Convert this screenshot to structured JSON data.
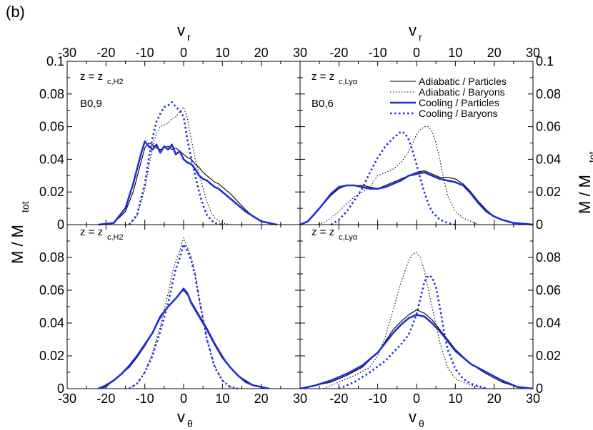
{
  "figure": {
    "panel_label": "(b)",
    "left_ylabel": "M / M",
    "left_ylabel_sub": "tot",
    "right_ylabel": "M / M",
    "right_ylabel_sub": "tot",
    "top_xlabel": "v",
    "top_xlabel_sub": "r",
    "bottom_xlabel": "v",
    "bottom_xlabel_sub": "θ"
  },
  "legend": {
    "entries": [
      {
        "label": "Adiabatic / Particles",
        "color": "#000000",
        "style": "solid-thin"
      },
      {
        "label": "Adiabatic / Baryons",
        "color": "#000000",
        "style": "dotted-thin"
      },
      {
        "label": "Cooling / Particles",
        "color": "#1f2fd6",
        "style": "solid-thick"
      },
      {
        "label": "Cooling / Baryons",
        "color": "#1f2fd6",
        "style": "dotted-thick"
      }
    ]
  },
  "annotations": {
    "tl_z": "z = z",
    "tl_z_sub": "c,H2",
    "tl_model": "B0,9",
    "tr_z": "z = z",
    "tr_z_sub": "c,Lyα",
    "tr_model": "B0,6",
    "bl_z": "z = z",
    "bl_z_sub": "c,H2",
    "br_z": "z = z",
    "br_z_sub": "c,Lyα"
  },
  "chart_data": [
    {
      "type": "line",
      "panel": "top-left",
      "xlabel": "v_r",
      "ylabel": "M / M_tot",
      "xlim": [
        -30,
        30
      ],
      "ylim": [
        0,
        0.1
      ],
      "x_ticks": [
        "-30",
        "-20",
        "-10",
        "0",
        "10",
        "20"
      ],
      "y_ticks": [
        "0",
        "0.02",
        "0.04",
        "0.06",
        "0.08",
        "0.1"
      ],
      "series": [
        {
          "name": "Adiabatic / Particles",
          "x": [
            -22,
            -18,
            -15,
            -13,
            -11,
            -10,
            -9,
            -8,
            -7,
            -6,
            -5,
            -4,
            -3,
            -2,
            -1,
            0,
            1,
            2,
            3,
            4,
            5,
            6,
            7,
            8,
            9,
            10,
            12,
            14,
            16,
            18,
            20,
            22,
            24
          ],
          "y": [
            0,
            0.001,
            0.008,
            0.02,
            0.038,
            0.047,
            0.05,
            0.049,
            0.047,
            0.046,
            0.047,
            0.048,
            0.046,
            0.047,
            0.045,
            0.043,
            0.041,
            0.04,
            0.037,
            0.035,
            0.032,
            0.03,
            0.028,
            0.026,
            0.025,
            0.023,
            0.019,
            0.014,
            0.009,
            0.005,
            0.002,
            0.001,
            0
          ]
        },
        {
          "name": "Adiabatic / Baryons",
          "x": [
            -14,
            -12,
            -10,
            -9,
            -8,
            -7,
            -6,
            -5,
            -4,
            -3,
            -2,
            -1,
            0,
            1,
            2,
            3,
            4,
            5,
            6,
            7,
            8,
            10,
            12
          ],
          "y": [
            0,
            0.005,
            0.022,
            0.035,
            0.047,
            0.056,
            0.06,
            0.061,
            0.062,
            0.065,
            0.066,
            0.069,
            0.072,
            0.065,
            0.052,
            0.04,
            0.031,
            0.022,
            0.014,
            0.008,
            0.004,
            0.001,
            0
          ]
        },
        {
          "name": "Cooling / Particles",
          "x": [
            -22,
            -18,
            -15,
            -13,
            -11,
            -10,
            -9,
            -8,
            -7,
            -6,
            -5,
            -4,
            -3,
            -2,
            -1,
            0,
            1,
            2,
            3,
            4,
            5,
            6,
            7,
            8,
            9,
            10,
            12,
            14,
            16,
            18,
            20,
            22,
            24
          ],
          "y": [
            0,
            0.001,
            0.01,
            0.025,
            0.043,
            0.051,
            0.048,
            0.046,
            0.049,
            0.044,
            0.048,
            0.046,
            0.049,
            0.043,
            0.045,
            0.04,
            0.038,
            0.037,
            0.034,
            0.03,
            0.028,
            0.027,
            0.025,
            0.023,
            0.022,
            0.02,
            0.016,
            0.012,
            0.008,
            0.005,
            0.002,
            0.001,
            0
          ]
        },
        {
          "name": "Cooling / Baryons",
          "x": [
            -14,
            -12,
            -10,
            -9,
            -8,
            -7,
            -6,
            -5,
            -4,
            -3,
            -2,
            -1,
            0,
            1,
            2,
            3,
            4,
            5,
            6,
            7,
            8,
            10
          ],
          "y": [
            0,
            0.006,
            0.025,
            0.04,
            0.053,
            0.063,
            0.068,
            0.072,
            0.073,
            0.075,
            0.072,
            0.07,
            0.066,
            0.052,
            0.04,
            0.03,
            0.02,
            0.012,
            0.006,
            0.003,
            0.001,
            0
          ]
        }
      ]
    },
    {
      "type": "line",
      "panel": "top-right",
      "xlabel": "v_r",
      "ylabel": "M / M_tot",
      "xlim": [
        -30,
        30
      ],
      "ylim": [
        0,
        0.1
      ],
      "x_ticks": [
        "30",
        "-20",
        "-10",
        "0",
        "10",
        "20",
        "30"
      ],
      "y_ticks": [
        "0",
        "0.02",
        "0.04",
        "0.06",
        "0.08",
        "0.1"
      ],
      "series": [
        {
          "name": "Adiabatic / Particles",
          "x": [
            -30,
            -28,
            -25,
            -22,
            -20,
            -18,
            -16,
            -14,
            -12,
            -10,
            -8,
            -6,
            -4,
            -2,
            0,
            2,
            4,
            6,
            8,
            10,
            12,
            14,
            16,
            18,
            20,
            22,
            25,
            28,
            30
          ],
          "y": [
            0,
            0.002,
            0.01,
            0.018,
            0.022,
            0.024,
            0.024,
            0.024,
            0.023,
            0.022,
            0.024,
            0.026,
            0.028,
            0.03,
            0.032,
            0.033,
            0.031,
            0.029,
            0.029,
            0.028,
            0.025,
            0.02,
            0.014,
            0.009,
            0.005,
            0.003,
            0.001,
            0.0005,
            0
          ]
        },
        {
          "name": "Adiabatic / Baryons",
          "x": [
            -26,
            -24,
            -22,
            -20,
            -18,
            -16,
            -14,
            -12,
            -10,
            -8,
            -6,
            -4,
            -2,
            0,
            1,
            2,
            3,
            4,
            5,
            6,
            7,
            8,
            10,
            12,
            14,
            16
          ],
          "y": [
            0,
            0.001,
            0.004,
            0.008,
            0.013,
            0.017,
            0.02,
            0.023,
            0.03,
            0.032,
            0.034,
            0.038,
            0.045,
            0.055,
            0.058,
            0.06,
            0.06,
            0.057,
            0.05,
            0.04,
            0.028,
            0.018,
            0.008,
            0.004,
            0.002,
            0
          ]
        },
        {
          "name": "Cooling / Particles",
          "x": [
            -30,
            -28,
            -25,
            -22,
            -20,
            -18,
            -16,
            -14,
            -12,
            -10,
            -8,
            -6,
            -4,
            -2,
            0,
            2,
            4,
            6,
            8,
            10,
            12,
            14,
            16,
            18,
            20,
            22,
            25,
            28,
            30
          ],
          "y": [
            0,
            0.002,
            0.01,
            0.019,
            0.023,
            0.024,
            0.024,
            0.023,
            0.022,
            0.022,
            0.023,
            0.025,
            0.027,
            0.03,
            0.031,
            0.032,
            0.03,
            0.028,
            0.027,
            0.026,
            0.024,
            0.019,
            0.013,
            0.008,
            0.005,
            0.003,
            0.001,
            0.0005,
            0
          ]
        },
        {
          "name": "Cooling / Baryons",
          "x": [
            -22,
            -20,
            -18,
            -16,
            -14,
            -12,
            -10,
            -8,
            -6,
            -5,
            -4,
            -3,
            -2,
            -1,
            0,
            1,
            2,
            3,
            4,
            6,
            8,
            10
          ],
          "y": [
            0,
            0.003,
            0.008,
            0.015,
            0.022,
            0.032,
            0.041,
            0.048,
            0.053,
            0.055,
            0.057,
            0.056,
            0.052,
            0.045,
            0.037,
            0.028,
            0.02,
            0.013,
            0.008,
            0.003,
            0.001,
            0
          ]
        }
      ]
    },
    {
      "type": "line",
      "panel": "bottom-left",
      "xlabel": "v_theta",
      "ylabel": "M / M_tot",
      "xlim": [
        -30,
        30
      ],
      "ylim": [
        0,
        0.1
      ],
      "x_ticks": [
        "-30",
        "-20",
        "-10",
        "0",
        "10",
        "20"
      ],
      "y_ticks": [
        "0",
        "0.02",
        "0.04",
        "0.06",
        "0.08"
      ],
      "series": [
        {
          "name": "Adiabatic / Particles",
          "x": [
            -22,
            -20,
            -18,
            -16,
            -14,
            -12,
            -10,
            -8,
            -6,
            -4,
            -2,
            -1,
            0,
            1,
            2,
            4,
            6,
            8,
            10,
            12,
            14,
            16,
            18,
            20,
            22
          ],
          "y": [
            0,
            0.001,
            0.005,
            0.009,
            0.013,
            0.019,
            0.026,
            0.034,
            0.043,
            0.05,
            0.055,
            0.058,
            0.06,
            0.057,
            0.053,
            0.045,
            0.037,
            0.028,
            0.02,
            0.013,
            0.008,
            0.005,
            0.002,
            0.001,
            0
          ]
        },
        {
          "name": "Adiabatic / Baryons",
          "x": [
            -14,
            -12,
            -10,
            -8,
            -6,
            -4,
            -3,
            -2,
            -1,
            0,
            1,
            2,
            3,
            4,
            6,
            8,
            10,
            12,
            14
          ],
          "y": [
            0,
            0.003,
            0.01,
            0.022,
            0.038,
            0.058,
            0.07,
            0.078,
            0.084,
            0.092,
            0.086,
            0.08,
            0.07,
            0.055,
            0.03,
            0.014,
            0.005,
            0.001,
            0
          ]
        },
        {
          "name": "Cooling / Particles",
          "x": [
            -22,
            -20,
            -18,
            -16,
            -14,
            -12,
            -10,
            -8,
            -6,
            -4,
            -2,
            -1,
            0,
            1,
            2,
            4,
            6,
            8,
            10,
            12,
            14,
            16,
            18,
            20,
            22
          ],
          "y": [
            0,
            0.002,
            0.005,
            0.009,
            0.014,
            0.02,
            0.027,
            0.034,
            0.044,
            0.05,
            0.055,
            0.058,
            0.061,
            0.058,
            0.052,
            0.044,
            0.036,
            0.027,
            0.019,
            0.013,
            0.008,
            0.004,
            0.002,
            0.001,
            0
          ]
        },
        {
          "name": "Cooling / Baryons",
          "x": [
            -14,
            -12,
            -10,
            -8,
            -6,
            -4,
            -3,
            -2,
            -1,
            0,
            1,
            2,
            3,
            4,
            6,
            8,
            10,
            12,
            14
          ],
          "y": [
            0,
            0.003,
            0.01,
            0.02,
            0.035,
            0.052,
            0.063,
            0.073,
            0.08,
            0.088,
            0.084,
            0.078,
            0.068,
            0.055,
            0.03,
            0.013,
            0.005,
            0.001,
            0
          ]
        }
      ]
    },
    {
      "type": "line",
      "panel": "bottom-right",
      "xlabel": "v_theta",
      "ylabel": "M / M_tot",
      "xlim": [
        -30,
        30
      ],
      "ylim": [
        0,
        0.1
      ],
      "x_ticks": [
        "30",
        "-20",
        "-10",
        "0",
        "10",
        "20",
        "30"
      ],
      "y_ticks": [
        "0",
        "0.02",
        "0.04",
        "0.06",
        "0.08"
      ],
      "series": [
        {
          "name": "Adiabatic / Particles",
          "x": [
            -30,
            -26,
            -22,
            -18,
            -14,
            -10,
            -8,
            -6,
            -4,
            -2,
            0,
            2,
            4,
            6,
            8,
            10,
            14,
            18,
            22,
            26,
            30
          ],
          "y": [
            0,
            0.002,
            0.004,
            0.008,
            0.013,
            0.022,
            0.029,
            0.036,
            0.041,
            0.045,
            0.048,
            0.046,
            0.042,
            0.036,
            0.03,
            0.024,
            0.015,
            0.009,
            0.004,
            0.001,
            0
          ]
        },
        {
          "name": "Adiabatic / Baryons",
          "x": [
            -24,
            -20,
            -16,
            -12,
            -10,
            -8,
            -6,
            -4,
            -2,
            -1,
            0,
            1,
            2,
            4,
            6,
            8,
            10,
            14,
            18
          ],
          "y": [
            0,
            0.004,
            0.008,
            0.013,
            0.02,
            0.032,
            0.048,
            0.065,
            0.078,
            0.082,
            0.083,
            0.08,
            0.072,
            0.05,
            0.028,
            0.013,
            0.006,
            0.002,
            0
          ]
        },
        {
          "name": "Cooling / Particles",
          "x": [
            -30,
            -26,
            -22,
            -18,
            -14,
            -10,
            -8,
            -6,
            -4,
            -2,
            0,
            2,
            4,
            6,
            8,
            10,
            14,
            18,
            22,
            26,
            30
          ],
          "y": [
            0,
            0.002,
            0.005,
            0.009,
            0.014,
            0.022,
            0.028,
            0.034,
            0.039,
            0.043,
            0.045,
            0.044,
            0.04,
            0.035,
            0.029,
            0.023,
            0.015,
            0.01,
            0.005,
            0.001,
            0
          ]
        },
        {
          "name": "Cooling / Baryons",
          "x": [
            -20,
            -16,
            -12,
            -8,
            -6,
            -4,
            -2,
            0,
            1,
            2,
            3,
            4,
            5,
            6,
            7,
            8,
            10,
            12,
            14,
            18
          ],
          "y": [
            0,
            0.004,
            0.01,
            0.017,
            0.022,
            0.027,
            0.033,
            0.045,
            0.055,
            0.065,
            0.069,
            0.068,
            0.062,
            0.05,
            0.036,
            0.024,
            0.012,
            0.006,
            0.003,
            0
          ]
        }
      ]
    }
  ]
}
